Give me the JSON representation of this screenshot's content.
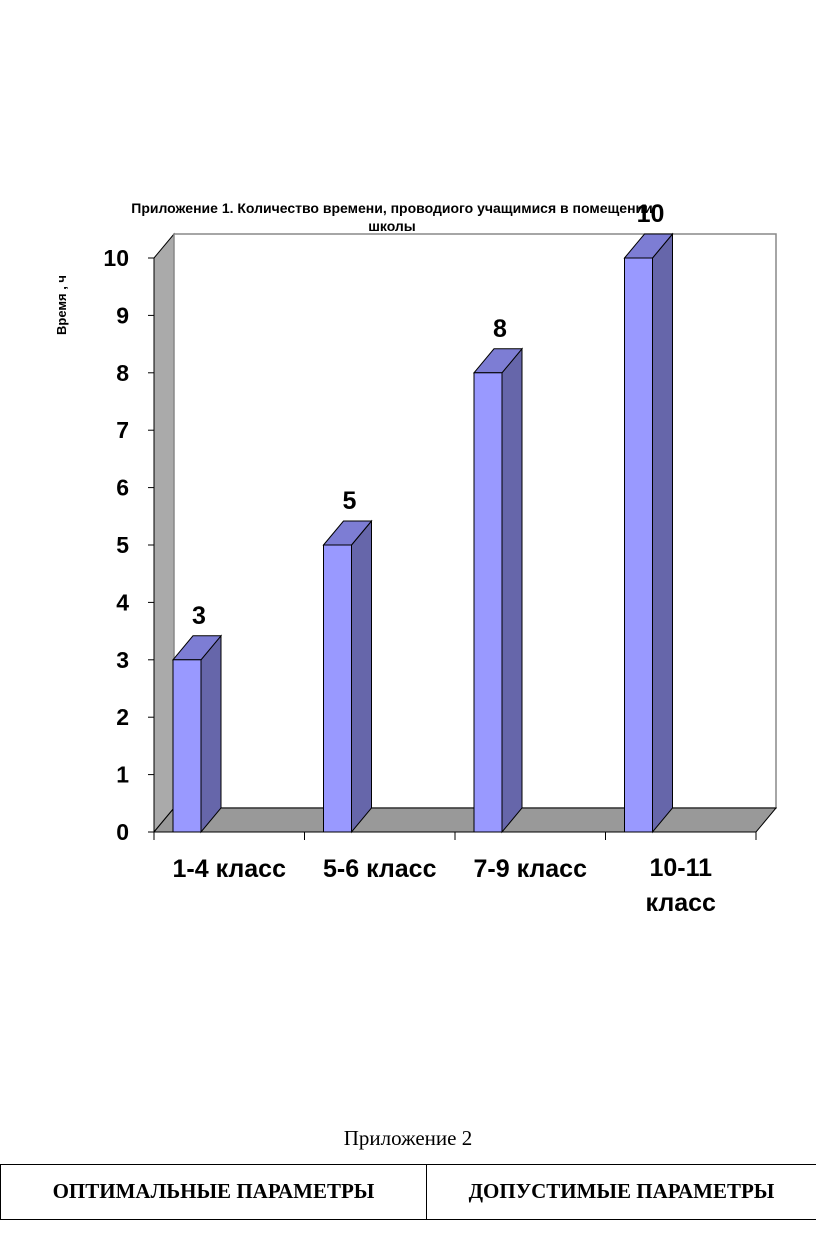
{
  "chart_data": {
    "type": "bar",
    "title_lines": [
      "Приложение 1. Количество времени, проводиого учащимися в помещении",
      "школы"
    ],
    "ylabel": "Время , ч",
    "xlabel": "",
    "categories": [
      [
        "1-4 класс"
      ],
      [
        "5-6 класс"
      ],
      [
        "7-9 класс"
      ],
      [
        "10-11",
        "класс"
      ]
    ],
    "values": [
      3,
      5,
      8,
      10
    ],
    "data_labels": [
      "3",
      "5",
      "8",
      "10"
    ],
    "ylim": [
      0,
      10
    ],
    "yticks": [
      0,
      1,
      2,
      3,
      4,
      5,
      6,
      7,
      8,
      9,
      10
    ],
    "grid": false,
    "style": "3d-column",
    "colors": {
      "bar_front": "#9999ff",
      "bar_side": "#6666aa",
      "bar_top": "#7d7dd4",
      "back_wall": "#ffffff",
      "side_wall": "#aaaaaa",
      "floor": "#999999"
    }
  },
  "appendix": {
    "heading": "Приложение 2",
    "table": {
      "headers": [
        "ОПТИМАЛЬНЫЕ ПАРАМЕТРЫ",
        "ДОПУСТИМЫЕ ПАРАМЕТРЫ"
      ]
    }
  }
}
